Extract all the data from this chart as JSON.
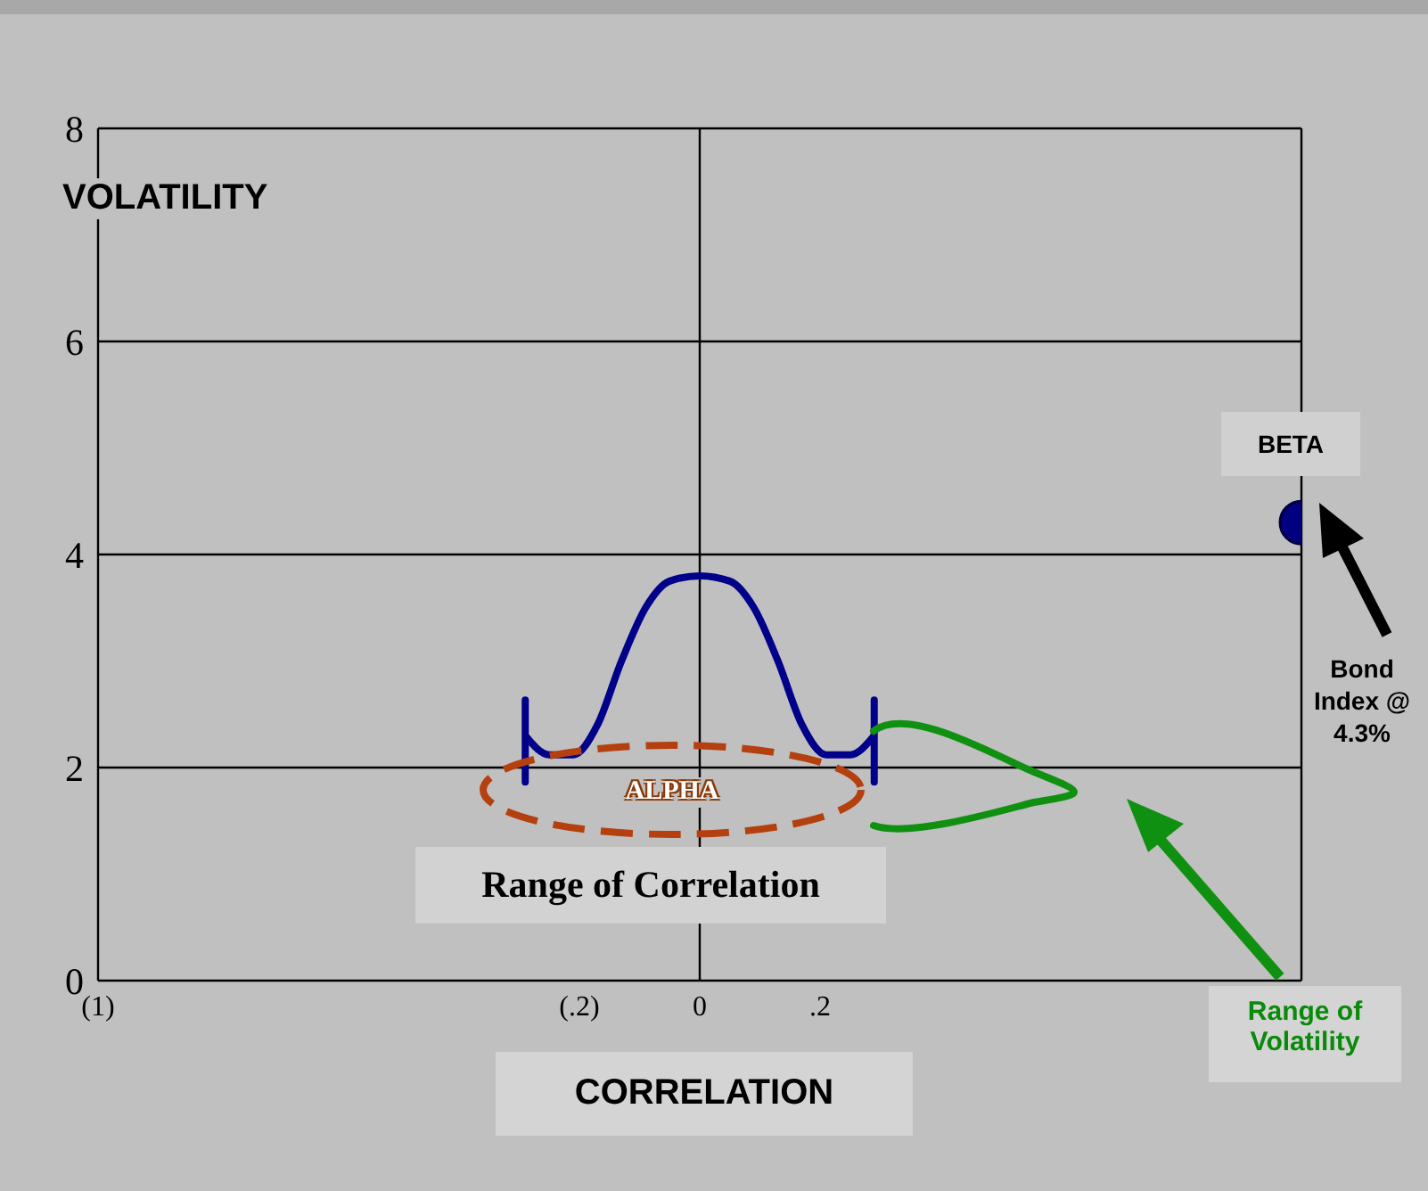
{
  "chart_data": {
    "type": "scatter",
    "xlabel": "CORRELATION",
    "ylabel": "VOLATILITY",
    "series": [
      {
        "marker": "circle",
        "color": "#000080",
        "x": [
          1
        ],
        "values": [
          4.3
        ]
      },
      {
        "type": "line",
        "marker": "none",
        "color": "#00008b",
        "x": [
          -0.29,
          -0.25,
          -0.21,
          -0.17,
          -0.13,
          -0.09,
          -0.05,
          0,
          0.05,
          0.09,
          0.13,
          0.17,
          0.21,
          0.25,
          0.29
        ],
        "values": [
          2.3,
          2.12,
          2.12,
          2.4,
          3.0,
          3.5,
          3.75,
          3.8,
          3.75,
          3.5,
          3.0,
          2.4,
          2.12,
          2.12,
          2.3
        ]
      }
    ],
    "xlim": [
      -1,
      1
    ],
    "xticks": [
      {
        "value": -1,
        "label": "(1)"
      },
      {
        "value": -0.2,
        "label": "(.2)"
      },
      0,
      {
        "value": 0.2,
        "label": ".2"
      }
    ],
    "ylim": [
      0,
      8
    ],
    "yticks": [
      0,
      2,
      4,
      6,
      8
    ],
    "grid": "y",
    "ref_lines": [
      {
        "axis": "x",
        "value": 0
      }
    ],
    "legend": false,
    "annotations": [
      {
        "text": "BETA",
        "x": 1,
        "y": 4.3
      },
      "ALPHA",
      "Range of Correlation",
      "Bond Index @ 4.3%",
      "Range of Volatility"
    ]
  }
}
